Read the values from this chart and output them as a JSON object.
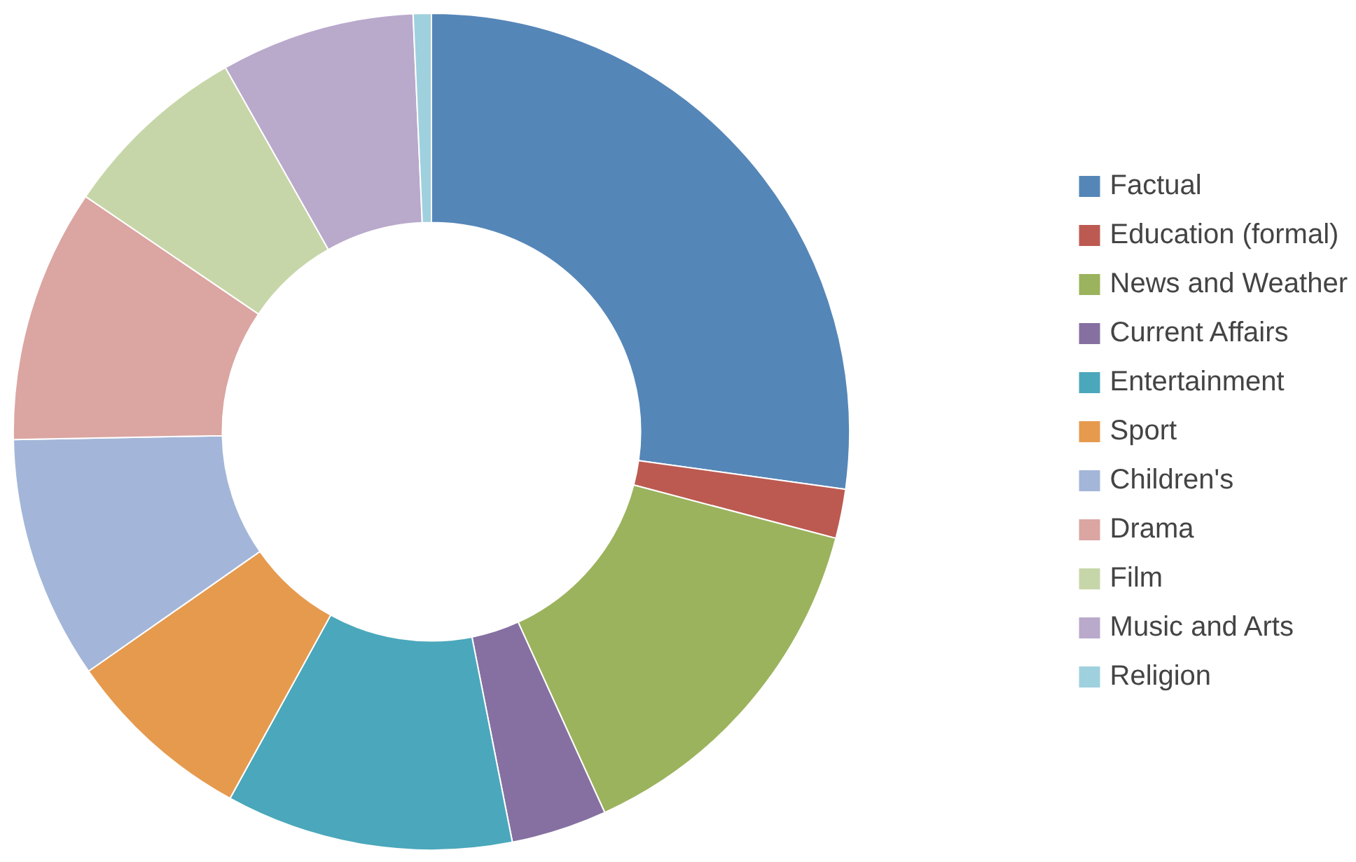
{
  "chart_data": {
    "type": "donut",
    "legend": "right",
    "categories": [
      "Factual",
      "Education (formal)",
      "News and Weather",
      "Current Affairs",
      "Entertainment",
      "Sport",
      "Children's",
      "Drama",
      "Film",
      "Music and Arts",
      "Religion"
    ],
    "values": [
      27.2,
      1.9,
      14.1,
      3.7,
      11.1,
      7.3,
      9.4,
      9.8,
      7.3,
      7.5,
      0.7
    ],
    "colors": [
      "#5586b8",
      "#bc5a51",
      "#9bb35d",
      "#8670a1",
      "#4ba7bb",
      "#e69a4e",
      "#a3b6d9",
      "#dba5a2",
      "#c7d6a8",
      "#b9a9cb",
      "#9fd0de"
    ]
  }
}
